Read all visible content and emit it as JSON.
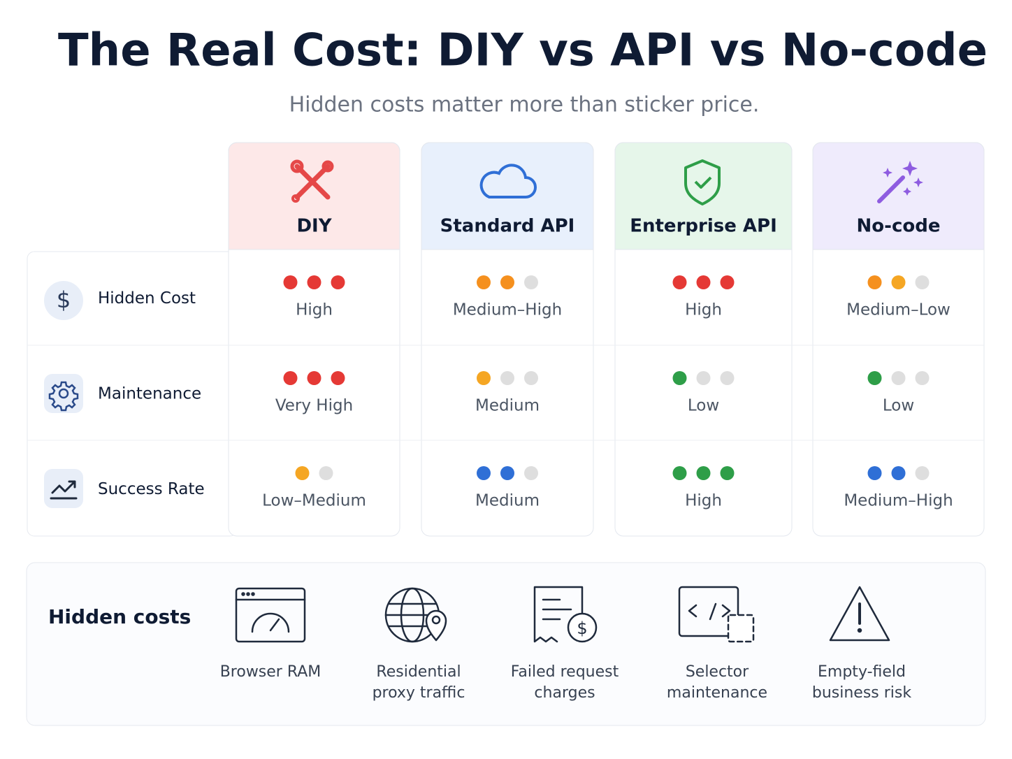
{
  "header": {
    "title": "The Real Cost: DIY vs API vs No-code",
    "subtitle": "Hidden costs matter more than sticker price."
  },
  "columns": [
    {
      "name": "DIY",
      "tint": "#fde8e8"
    },
    {
      "name": "Standard API",
      "tint": "#e8f0fc"
    },
    {
      "name": "Enterprise API",
      "tint": "#e6f6ea"
    },
    {
      "name": "No-code",
      "tint": "#efebfc"
    }
  ],
  "rows": [
    {
      "label": "Hidden Cost",
      "cells": [
        {
          "dots": [
            "#e53935",
            "#e53935",
            "#e53935"
          ],
          "label": "High"
        },
        {
          "dots": [
            "#f5901e",
            "#f5901e",
            "#dedede"
          ],
          "label": "Medium–High"
        },
        {
          "dots": [
            "#e53935",
            "#e53935",
            "#e53935"
          ],
          "label": "High"
        },
        {
          "dots": [
            "#f5901e",
            "#f5a623",
            "#dedede"
          ],
          "label": "Medium–Low"
        }
      ]
    },
    {
      "label": "Maintenance",
      "cells": [
        {
          "dots": [
            "#e53935",
            "#e53935",
            "#e53935"
          ],
          "label": "Very High"
        },
        {
          "dots": [
            "#f5a623",
            "#dedede",
            "#dedede"
          ],
          "label": "Medium"
        },
        {
          "dots": [
            "#2e9e48",
            "#dedede",
            "#dedede"
          ],
          "label": "Low"
        },
        {
          "dots": [
            "#2e9e48",
            "#dedede",
            "#dedede"
          ],
          "label": "Low"
        }
      ]
    },
    {
      "label": "Success Rate",
      "cells": [
        {
          "dots": [
            "#f5a623",
            "#dedede"
          ],
          "label": "Low–Medium"
        },
        {
          "dots": [
            "#2f6fd6",
            "#2f6fd6",
            "#dedede"
          ],
          "label": "Medium"
        },
        {
          "dots": [
            "#2e9e48",
            "#2e9e48",
            "#2e9e48"
          ],
          "label": "High"
        },
        {
          "dots": [
            "#2f6fd6",
            "#2f6fd6",
            "#dedede"
          ],
          "label": "Medium–High"
        }
      ]
    }
  ],
  "hidden_costs": {
    "title": "Hidden costs",
    "items": [
      {
        "lines": [
          "Browser RAM"
        ]
      },
      {
        "lines": [
          "Residential",
          "proxy traffic"
        ]
      },
      {
        "lines": [
          "Failed request",
          "charges"
        ]
      },
      {
        "lines": [
          "Selector",
          "maintenance"
        ]
      },
      {
        "lines": [
          "Empty-field",
          "business risk"
        ]
      }
    ]
  }
}
